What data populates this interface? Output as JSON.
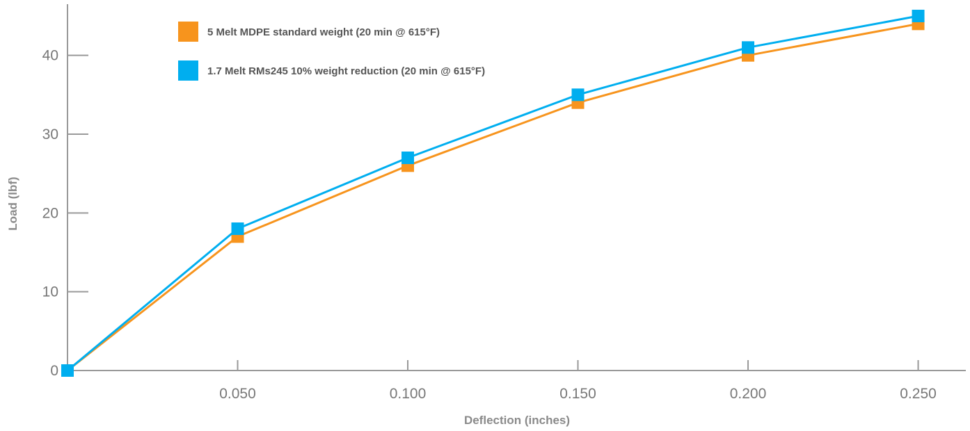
{
  "chart_data": {
    "type": "line",
    "title": "",
    "xlabel": "Deflection (inches)",
    "ylabel": "Load (lbf)",
    "x": [
      0,
      0.05,
      0.1,
      0.15,
      0.2,
      0.25
    ],
    "x_tick_labels": [
      "0.050",
      "0.100",
      "0.150",
      "0.200",
      "0.250"
    ],
    "x_tick_values": [
      0.05,
      0.1,
      0.15,
      0.2,
      0.25
    ],
    "y_ticks": [
      0,
      10,
      20,
      30,
      40
    ],
    "y_tick_labels": [
      "0",
      "10",
      "20",
      "30",
      "40"
    ],
    "xlim": [
      0,
      0.264
    ],
    "ylim": [
      0,
      46.5
    ],
    "grid": false,
    "legend_position": "top-left",
    "series": [
      {
        "name": "5 Melt MDPE standard weight (20 min @ 615°F)",
        "color": "#F7941D",
        "marker": "square",
        "values": [
          0,
          17,
          26,
          34,
          40,
          44
        ]
      },
      {
        "name": "1.7 Melt RMs245 10% weight reduction (20 min @ 615°F)",
        "color": "#00AEEF",
        "marker": "square",
        "values": [
          0,
          18,
          27,
          35,
          41,
          45
        ]
      }
    ]
  }
}
